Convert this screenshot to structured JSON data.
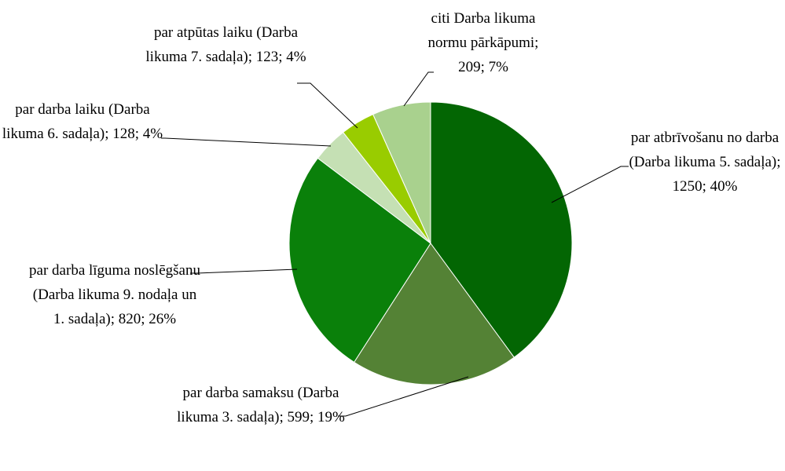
{
  "chart_data": {
    "type": "pie",
    "values": [
      1250,
      599,
      820,
      128,
      123,
      209
    ],
    "value_labels": [
      "par atbrīvošanu no darba (Darba likuma 5. sadaļa); 1250; 40%",
      "par darba samaksu (Darba likuma 3. sadaļa); 599; 19%",
      "par darba līguma noslēgšanu (Darba likuma 9. nodaļa un 1. sadaļa); 820; 26%",
      "par darba laiku (Darba likuma 6. sadaļa); 128; 4%",
      "par atpūtas laiku (Darba likuma 7. sadaļa); 123; 4%",
      "citi Darba likuma normu pārkāpumi; 209; 7%"
    ],
    "colors": [
      "#036603",
      "#548235",
      "#0a800a",
      "#c5e0b4",
      "#99cc00",
      "#a9d18e"
    ]
  }
}
